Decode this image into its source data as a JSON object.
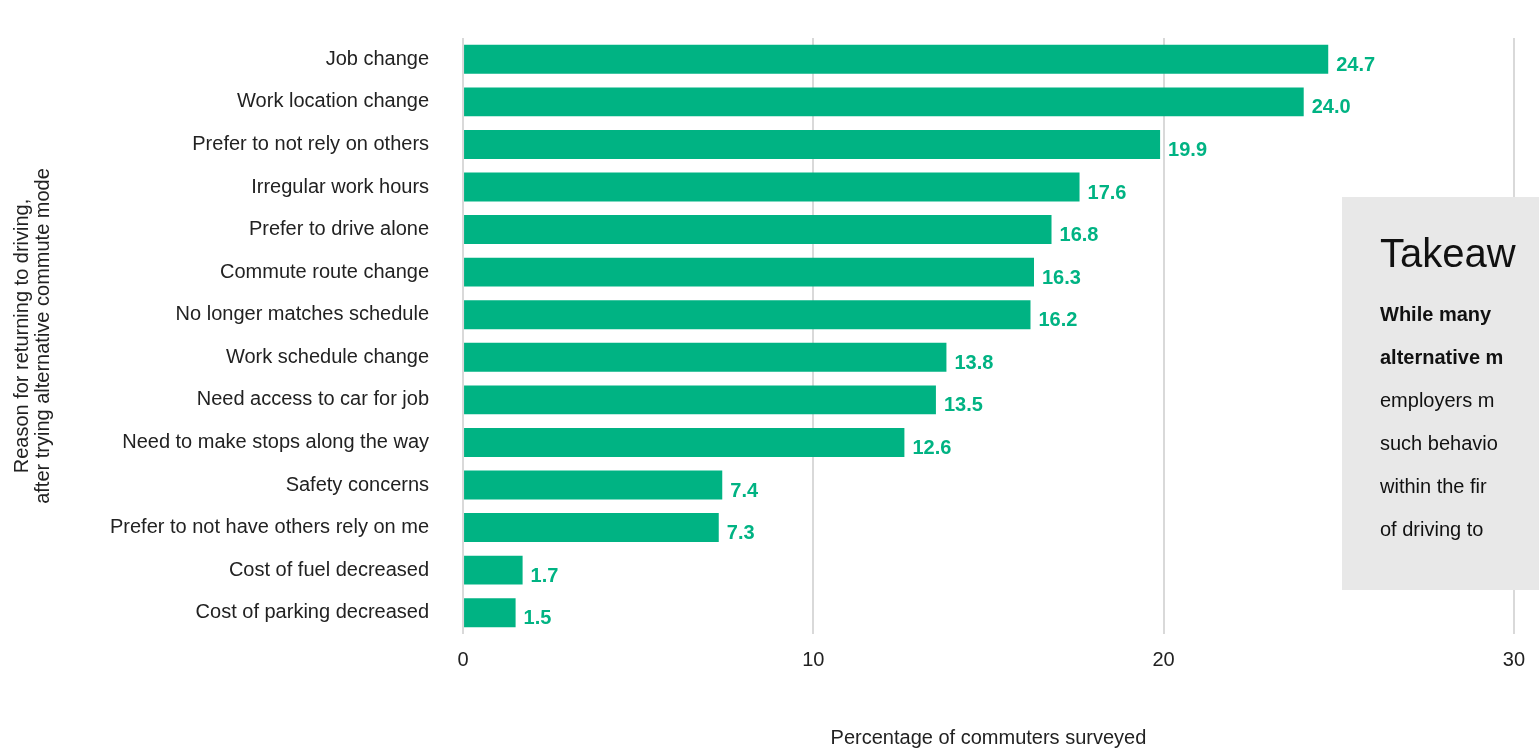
{
  "chart_data": {
    "type": "bar",
    "orientation": "horizontal",
    "xlabel": "Percentage of commuters surveyed",
    "ylabel": "Reason for returning to driving,\nafter trying alternative commute mode",
    "categories": [
      "Job change",
      "Work location change",
      "Prefer to not rely on others",
      "Irregular work hours",
      "Prefer to drive alone",
      "Commute route change",
      "No longer matches schedule",
      "Work schedule change",
      "Need access to car for job",
      "Need to make stops along the way",
      "Safety concerns",
      "Prefer to not have others rely on me",
      "Cost of fuel decreased",
      "Cost of parking decreased"
    ],
    "values": [
      24.7,
      24.0,
      19.9,
      17.6,
      16.8,
      16.3,
      16.2,
      13.8,
      13.5,
      12.6,
      7.4,
      7.3,
      1.7,
      1.5
    ],
    "value_labels": [
      "24.7",
      "24.0",
      "19.9",
      "17.6",
      "16.8",
      "16.3",
      "16.2",
      "13.8",
      "13.5",
      "12.6",
      "7.4",
      "7.3",
      "1.7",
      "1.5"
    ],
    "color": "#00b383",
    "xlim": [
      0,
      30
    ],
    "xticks": [
      0,
      10,
      20,
      30
    ],
    "grid": "x",
    "legend": false,
    "annotations": [
      "Takeaw",
      "While many",
      "alternative m",
      "employers m",
      "such behavio",
      "within the fir",
      "of driving to"
    ]
  }
}
